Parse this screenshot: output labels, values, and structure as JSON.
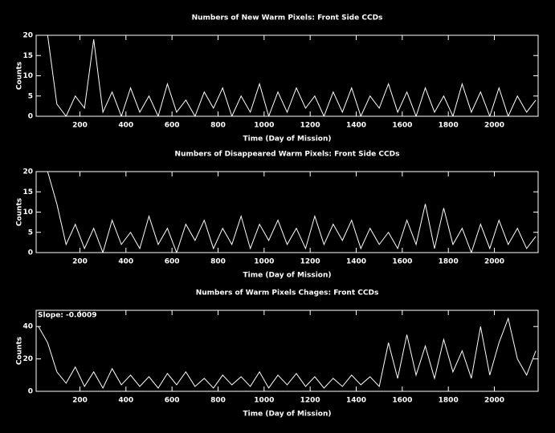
{
  "chart_data": [
    {
      "type": "line",
      "title": "Numbers of New Warm Pixels: Front Side CCDs",
      "xlabel": "Time (Day of Mission)",
      "ylabel": "Counts",
      "x": [
        20,
        60,
        100,
        140,
        180,
        220,
        260,
        300,
        340,
        380,
        420,
        460,
        500,
        540,
        580,
        620,
        660,
        700,
        740,
        780,
        820,
        860,
        900,
        940,
        980,
        1020,
        1060,
        1100,
        1140,
        1180,
        1220,
        1260,
        1300,
        1340,
        1380,
        1420,
        1460,
        1500,
        1540,
        1580,
        1620,
        1660,
        1700,
        1740,
        1780,
        1820,
        1860,
        1900,
        1940,
        1980,
        2020,
        2060,
        2100,
        2140,
        2180
      ],
      "series": [
        {
          "color": "#ffffff",
          "values": [
            20,
            20,
            3,
            0,
            5,
            2,
            19,
            1,
            6,
            0,
            7,
            1,
            5,
            0,
            8,
            1,
            4,
            0,
            6,
            2,
            7,
            0,
            5,
            1,
            8,
            0,
            6,
            1,
            7,
            2,
            5,
            0,
            6,
            1,
            7,
            0,
            5,
            2,
            8,
            1,
            6,
            0,
            7,
            1,
            5,
            0,
            8,
            1,
            6,
            0,
            7,
            0,
            5,
            1,
            4
          ]
        }
      ],
      "xlim": [
        10,
        2190
      ],
      "ylim": [
        0,
        20
      ],
      "xticks": [
        200,
        400,
        600,
        800,
        1000,
        1200,
        1400,
        1600,
        1800,
        2000
      ],
      "yticks": [
        0,
        5,
        10,
        15,
        20
      ]
    },
    {
      "type": "line",
      "title": "Numbers of Disappeared Warm Pixels: Front Side CCDs",
      "xlabel": "Time (Day of Mission)",
      "ylabel": "Counts",
      "x": [
        20,
        60,
        100,
        140,
        180,
        220,
        260,
        300,
        340,
        380,
        420,
        460,
        500,
        540,
        580,
        620,
        660,
        700,
        740,
        780,
        820,
        860,
        900,
        940,
        980,
        1020,
        1060,
        1100,
        1140,
        1180,
        1220,
        1260,
        1300,
        1340,
        1380,
        1420,
        1460,
        1500,
        1540,
        1580,
        1620,
        1660,
        1700,
        1740,
        1780,
        1820,
        1860,
        1900,
        1940,
        1980,
        2020,
        2060,
        2100,
        2140,
        2180
      ],
      "series": [
        {
          "color": "#ffffff",
          "values": [
            20,
            20,
            12,
            2,
            7,
            1,
            6,
            0,
            8,
            2,
            5,
            1,
            9,
            2,
            6,
            0,
            7,
            3,
            8,
            1,
            6,
            2,
            9,
            1,
            7,
            3,
            8,
            2,
            6,
            1,
            9,
            2,
            7,
            3,
            8,
            1,
            6,
            2,
            5,
            1,
            8,
            2,
            12,
            1,
            11,
            2,
            6,
            0,
            7,
            1,
            8,
            2,
            6,
            1,
            4
          ]
        }
      ],
      "xlim": [
        10,
        2190
      ],
      "ylim": [
        0,
        20
      ],
      "xticks": [
        200,
        400,
        600,
        800,
        1000,
        1200,
        1400,
        1600,
        1800,
        2000
      ],
      "yticks": [
        0,
        5,
        10,
        15,
        20
      ]
    },
    {
      "type": "line",
      "title": "Numbers of Warm Pixels Chages: Front CCDs",
      "xlabel": "Time (Day of Mission)",
      "ylabel": "Counts",
      "annotation": "Slope: -0.0009",
      "x": [
        20,
        60,
        100,
        140,
        180,
        220,
        260,
        300,
        340,
        380,
        420,
        460,
        500,
        540,
        580,
        620,
        660,
        700,
        740,
        780,
        820,
        860,
        900,
        940,
        980,
        1020,
        1060,
        1100,
        1140,
        1180,
        1220,
        1260,
        1300,
        1340,
        1380,
        1420,
        1460,
        1500,
        1540,
        1580,
        1620,
        1660,
        1700,
        1740,
        1780,
        1820,
        1860,
        1900,
        1940,
        1980,
        2020,
        2060,
        2100,
        2140,
        2180
      ],
      "series": [
        {
          "color": "#ffffff",
          "values": [
            40,
            30,
            12,
            5,
            15,
            3,
            12,
            2,
            14,
            4,
            10,
            3,
            9,
            2,
            11,
            4,
            12,
            3,
            8,
            2,
            10,
            4,
            9,
            3,
            12,
            2,
            10,
            4,
            11,
            3,
            9,
            2,
            8,
            3,
            10,
            4,
            9,
            3,
            30,
            8,
            35,
            10,
            28,
            8,
            32,
            12,
            25,
            8,
            40,
            10,
            30,
            45,
            20,
            10,
            25
          ]
        }
      ],
      "xlim": [
        10,
        2190
      ],
      "ylim": [
        0,
        50
      ],
      "xticks": [
        200,
        400,
        600,
        800,
        1000,
        1200,
        1400,
        1600,
        1800,
        2000
      ],
      "yticks": [
        0,
        20,
        40
      ]
    }
  ]
}
